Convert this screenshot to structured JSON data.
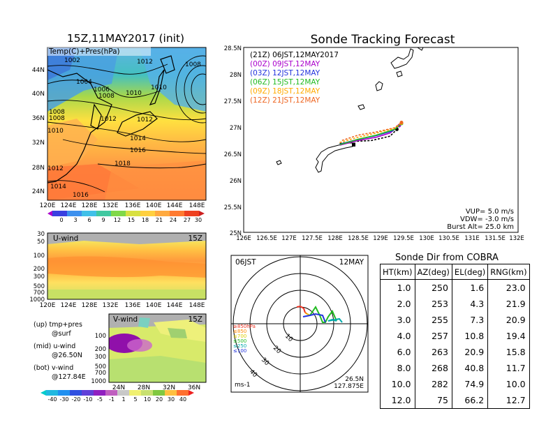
{
  "main_title": "15Z,11MAY2017 (init)",
  "track_title": "Sonde Tracking Forecast",
  "map_panel": {
    "label": "Temp(C)+Pres(hPa)",
    "lat_labels": [
      "44N",
      "40N",
      "36N",
      "32N",
      "28N",
      "24N"
    ],
    "lon_labels": [
      "120E",
      "124E",
      "128E",
      "132E",
      "136E",
      "140E",
      "144E",
      "148E"
    ],
    "isobar_labels": [
      "1002",
      "1012",
      "1008",
      "1004",
      "1006",
      "1008",
      "1010",
      "1010",
      "1008",
      "1012",
      "1012",
      "1014",
      "1016",
      "1018",
      "1012",
      "1014",
      "1016",
      "1008",
      "1010"
    ],
    "colorbar_ticks": [
      "0",
      "3",
      "6",
      "9",
      "12",
      "15",
      "18",
      "21",
      "24",
      "27",
      "30"
    ]
  },
  "u_panel": {
    "label": "U-wind",
    "time": "15Z",
    "pressure_labels": [
      "30",
      "50",
      "100",
      "200",
      "300",
      "500",
      "700",
      "1000"
    ],
    "lon_labels": [
      "120E",
      "124E",
      "128E",
      "132E",
      "136E",
      "140E",
      "144E",
      "148E"
    ]
  },
  "v_panel": {
    "label": "V-wind",
    "time": "15Z",
    "pressure_labels": [
      "100",
      "200",
      "300",
      "500",
      "700",
      "1000"
    ],
    "lat_labels": [
      "24N",
      "28N",
      "32N",
      "36N"
    ],
    "colorbar_ticks": [
      "-40",
      "-30",
      "-20",
      "-10",
      "-5",
      "-1",
      "1",
      "5",
      "10",
      "20",
      "30",
      "40"
    ]
  },
  "legend_notes": {
    "up": "(up) tmp+pres",
    "up_sub": "@surf",
    "mid": "(mid) u-wind",
    "mid_sub": "@26.50N",
    "bot": "(bot) v-wind",
    "bot_sub": "@127.84E"
  },
  "tracking": {
    "lat_labels": [
      "28.5N",
      "28N",
      "27.5N",
      "27N",
      "26.5N",
      "26N",
      "25.5N",
      "25N"
    ],
    "lon_labels": [
      "126E",
      "126.5E",
      "127E",
      "127.5E",
      "128E",
      "128.5E",
      "129E",
      "129.5E",
      "130E",
      "130.5E",
      "131E",
      "131.5E",
      "132E"
    ],
    "launch_times": [
      {
        "label": "(21Z) 06JST,12MAY2017",
        "color": "#000000"
      },
      {
        "label": "(00Z) 09JST,12MAY",
        "color": "#aa00cc"
      },
      {
        "label": "(03Z) 12JST,12MAY",
        "color": "#2233dd"
      },
      {
        "label": "(06Z) 15JST,12MAY",
        "color": "#22bb22"
      },
      {
        "label": "(09Z) 18JST,12MAY",
        "color": "#ffaa00"
      },
      {
        "label": "(12Z) 21JST,12MAY",
        "color": "#ee6622"
      }
    ],
    "vup": "VUP=  5.0 m/s",
    "vdw": "VDW= -3.0 m/s",
    "burst": "Burst Alt= 25.0 km"
  },
  "polar": {
    "time_label": "06JST",
    "date_label": "12MAY",
    "ring_labels": [
      "10",
      "20",
      "30",
      "40"
    ],
    "level_legend": [
      {
        "label": "≥850hPa",
        "color": "#ee3322"
      },
      {
        "label": "≤850",
        "color": "#ff8800"
      },
      {
        "label": "≤700",
        "color": "#ddcc00"
      },
      {
        "label": "≤500",
        "color": "#22bb22"
      },
      {
        "label": "≤250",
        "color": "#00aaaa"
      },
      {
        "label": "≤100",
        "color": "#2233dd"
      }
    ],
    "unit": "ms-1",
    "site_lat": "26.5N",
    "site_lon": "127.875E"
  },
  "sonde_dir": {
    "title": "Sonde Dir from COBRA",
    "headers": [
      "HT(km)",
      "AZ(deg)",
      "EL(deg)",
      "RNG(km)"
    ],
    "rows": [
      [
        "1.0",
        "250",
        "1.6",
        "23.0"
      ],
      [
        "2.0",
        "253",
        "4.3",
        "21.9"
      ],
      [
        "3.0",
        "255",
        "7.3",
        "20.9"
      ],
      [
        "4.0",
        "257",
        "10.8",
        "19.4"
      ],
      [
        "6.0",
        "263",
        "20.9",
        "15.8"
      ],
      [
        "8.0",
        "268",
        "40.8",
        "11.7"
      ],
      [
        "10.0",
        "282",
        "74.9",
        "10.0"
      ],
      [
        "12.0",
        "75",
        "66.2",
        "12.7"
      ]
    ]
  },
  "chart_data": [
    {
      "type": "line",
      "title": "Sonde Tracking Forecast",
      "xlim": [
        126,
        132
      ],
      "ylim": [
        25,
        28.5
      ],
      "series": [
        {
          "name": "(21Z) 06JST,12MAY2017",
          "x": [
            128.1,
            128.4,
            128.8,
            129.2,
            129.35
          ],
          "y": [
            26.68,
            26.72,
            26.74,
            26.82,
            26.95
          ]
        },
        {
          "name": "(00Z) 09JST,12MAY",
          "x": [
            128.1,
            128.5,
            128.9,
            129.2,
            129.4
          ],
          "y": [
            26.65,
            26.74,
            26.8,
            26.88,
            27.02
          ]
        },
        {
          "name": "(03Z) 12JST,12MAY",
          "x": [
            128.1,
            128.5,
            128.9,
            129.25,
            129.45
          ],
          "y": [
            26.67,
            26.76,
            26.83,
            26.92,
            27.06
          ]
        },
        {
          "name": "(06Z) 15JST,12MAY",
          "x": [
            128.1,
            128.5,
            128.9,
            129.3,
            129.45
          ],
          "y": [
            26.66,
            26.76,
            26.84,
            26.95,
            27.06
          ]
        },
        {
          "name": "(09Z) 18JST,12MAY",
          "x": [
            128.1,
            128.5,
            128.9,
            129.3,
            129.45
          ],
          "y": [
            26.7,
            26.8,
            26.88,
            26.97,
            27.07
          ]
        },
        {
          "name": "(12Z) 21JST,12MAY",
          "x": [
            128.15,
            128.5,
            128.9,
            129.3,
            129.45
          ],
          "y": [
            26.74,
            26.84,
            26.9,
            26.98,
            27.08
          ]
        }
      ]
    },
    {
      "type": "table",
      "title": "Sonde Dir from COBRA",
      "columns": [
        "HT(km)",
        "AZ(deg)",
        "EL(deg)",
        "RNG(km)"
      ],
      "rows": [
        [
          1.0,
          250,
          1.6,
          23.0
        ],
        [
          2.0,
          253,
          4.3,
          21.9
        ],
        [
          3.0,
          255,
          7.3,
          20.9
        ],
        [
          4.0,
          257,
          10.8,
          19.4
        ],
        [
          6.0,
          263,
          20.9,
          15.8
        ],
        [
          8.0,
          268,
          40.8,
          11.7
        ],
        [
          10.0,
          282,
          74.9,
          10.0
        ],
        [
          12.0,
          75,
          66.2,
          12.7
        ]
      ]
    }
  ]
}
